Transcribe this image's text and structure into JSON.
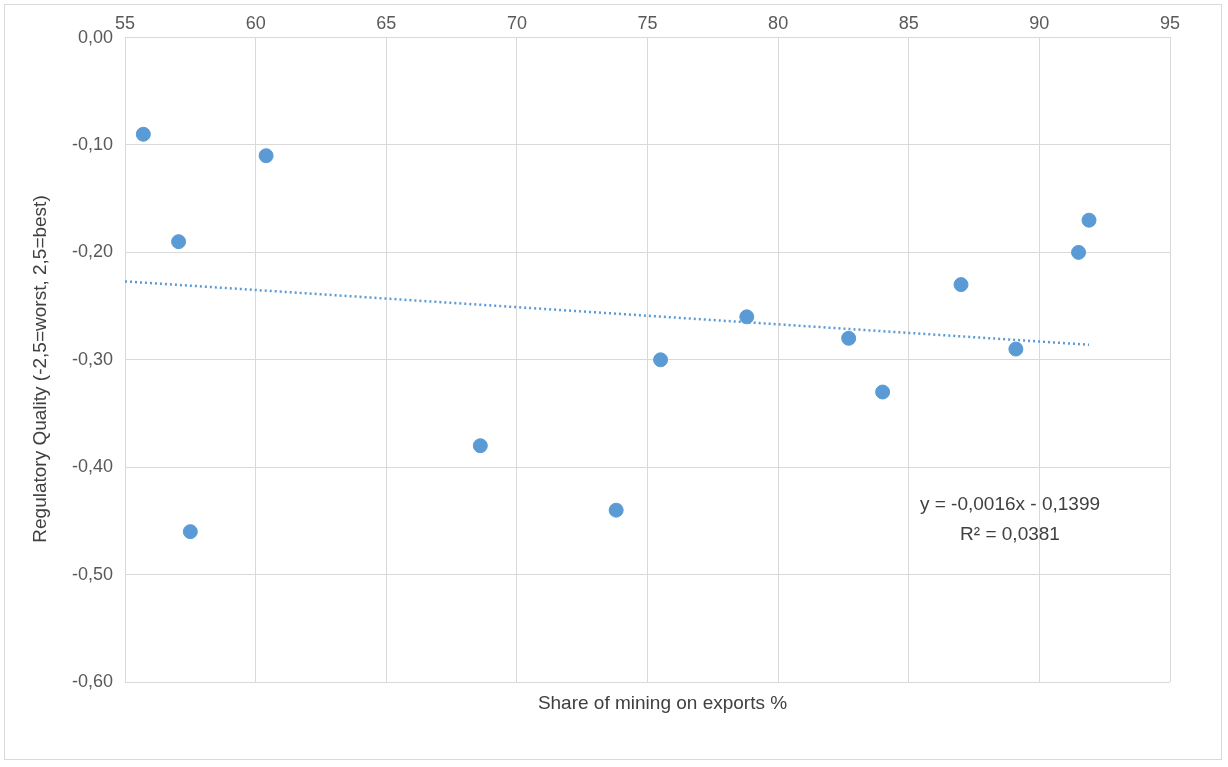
{
  "chart_data": {
    "type": "scatter",
    "xlabel": "Share of mining on exports %",
    "ylabel": "Regulatory Quality (-2,5=worst, 2,5=best)",
    "xlim": [
      55,
      95
    ],
    "xticks": [
      55,
      60,
      65,
      70,
      75,
      80,
      85,
      90,
      95
    ],
    "ylim": [
      -0.6,
      0
    ],
    "yticks": [
      {
        "value": -0.6,
        "label": "-0,60"
      },
      {
        "value": -0.5,
        "label": "-0,50"
      },
      {
        "value": -0.4,
        "label": "-0,40"
      },
      {
        "value": -0.3,
        "label": "-0,30"
      },
      {
        "value": -0.2,
        "label": "-0,20"
      },
      {
        "value": -0.1,
        "label": "-0,10"
      },
      {
        "value": 0,
        "label": "0,00"
      }
    ],
    "grid": true,
    "legend": false,
    "marker": "circle",
    "series": [
      {
        "color": "#5b9bd5",
        "x": [
          55.7,
          57.05,
          57.5,
          60.4,
          68.6,
          73.8,
          75.5,
          78.8,
          82.7,
          84.0,
          87.0,
          89.1,
          91.5,
          91.9
        ],
        "values": [
          -0.09,
          -0.19,
          -0.46,
          -0.11,
          -0.38,
          -0.44,
          -0.3,
          -0.26,
          -0.28,
          -0.33,
          -0.23,
          -0.29,
          -0.2,
          -0.17
        ]
      },
      {
        "type": "line",
        "color": "#5b9bd5",
        "line_style": "dotted",
        "marker": "none",
        "x": [
          55,
          91.9
        ],
        "values": [
          -0.227,
          -0.286
        ]
      }
    ],
    "annotations": [
      "y = -0,0016x - 0,1399",
      "R² = 0,0381"
    ]
  }
}
